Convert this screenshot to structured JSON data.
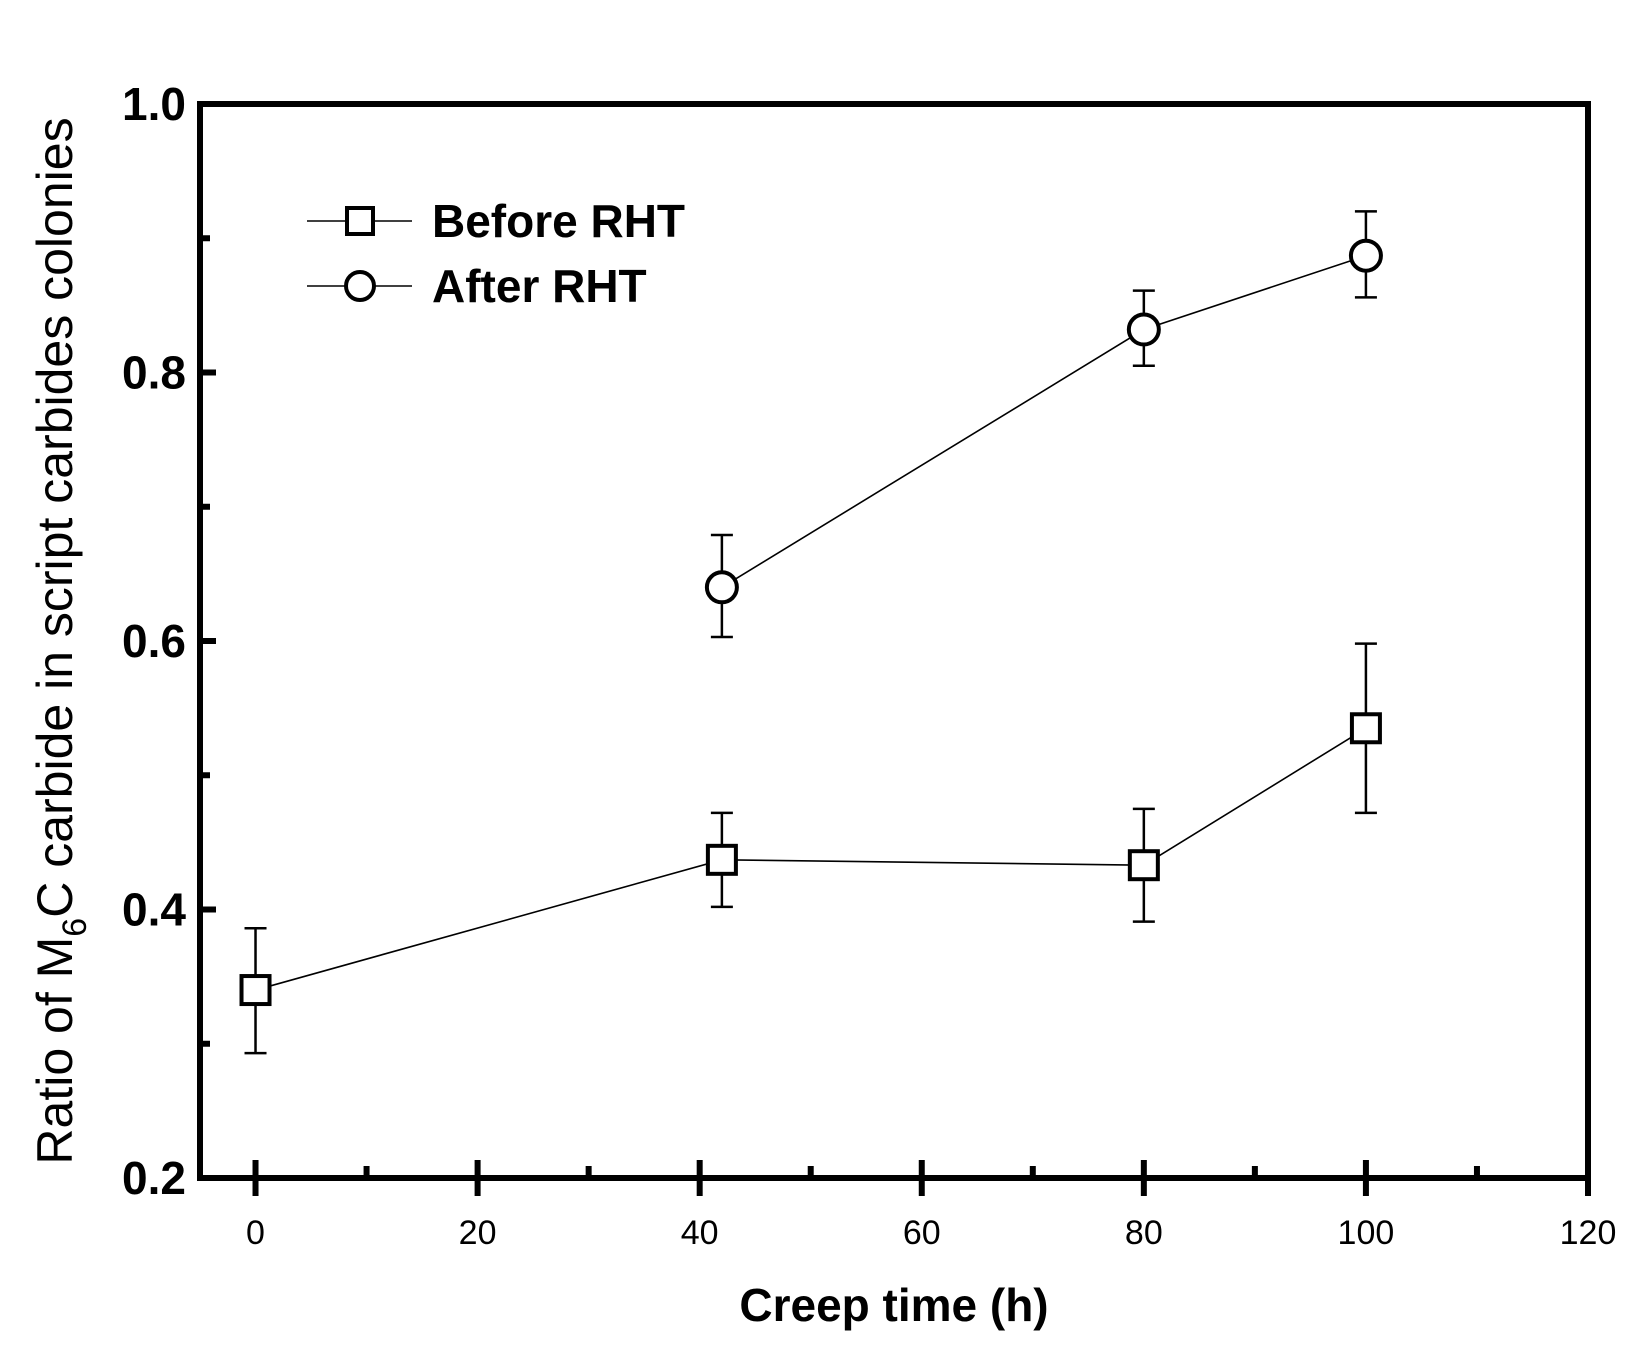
{
  "chart_data": {
    "type": "line",
    "xlabel": "Creep time (h)",
    "ylabel": {
      "prefix": "Ratio of M",
      "subscript": "6",
      "suffix": "C carbide in script carbides colonies"
    },
    "xlim": [
      -5,
      120
    ],
    "ylim": [
      0.2,
      1.0
    ],
    "x_ticks": [
      0,
      20,
      40,
      60,
      80,
      100,
      120
    ],
    "x_minor_ticks": [
      10,
      30,
      50,
      70,
      90,
      110
    ],
    "y_ticks": [
      0.2,
      0.4,
      0.6,
      0.8,
      1.0
    ],
    "y_tick_labels": [
      "0.2",
      "0.4",
      "0.6",
      "0.8",
      "1.0"
    ],
    "y_minor_ticks": [
      0.3,
      0.5,
      0.7,
      0.9
    ],
    "legend_position": "top-left",
    "series": [
      {
        "name": "Before RHT",
        "marker": "square",
        "x": [
          0,
          42,
          80,
          100
        ],
        "y": [
          0.34,
          0.437,
          0.433,
          0.535
        ],
        "err_low": [
          0.293,
          0.402,
          0.391,
          0.472
        ],
        "err_high": [
          0.386,
          0.472,
          0.475,
          0.598
        ]
      },
      {
        "name": "After RHT",
        "marker": "circle",
        "x": [
          42,
          80,
          100
        ],
        "y": [
          0.64,
          0.832,
          0.887
        ],
        "err_low": [
          0.603,
          0.805,
          0.856
        ],
        "err_high": [
          0.679,
          0.861,
          0.92
        ]
      }
    ]
  }
}
